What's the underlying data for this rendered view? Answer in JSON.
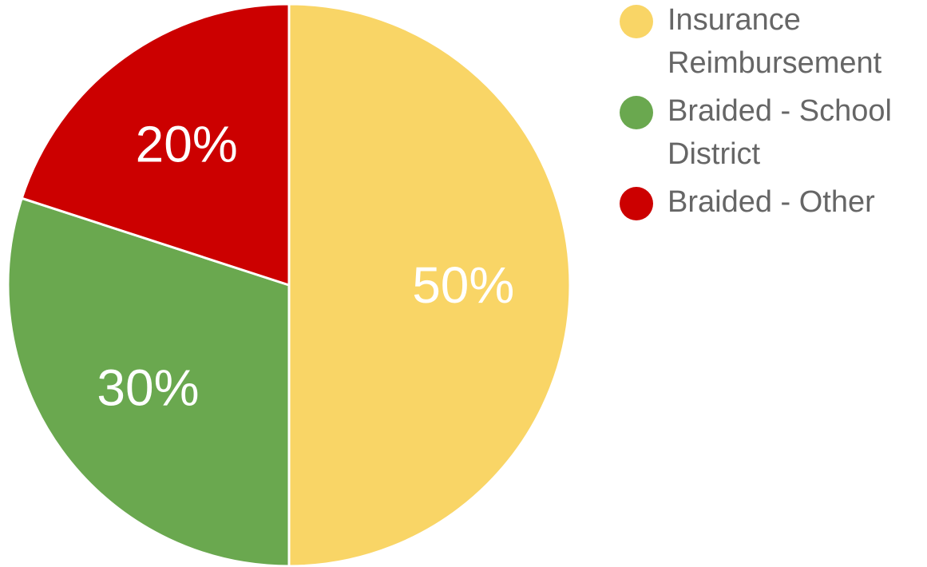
{
  "chart_data": {
    "type": "pie",
    "categories": [
      "Insurance Reimbursement",
      "Braided - School District",
      "Braided - Other"
    ],
    "values": [
      50,
      30,
      20
    ],
    "value_labels": [
      "50%",
      "30%",
      "20%"
    ],
    "colors": [
      "#F9D566",
      "#6AA84F",
      "#CC0000"
    ],
    "legend_position": "right",
    "start_angle": "12 o'clock",
    "direction": "clockwise"
  },
  "legend": {
    "items": [
      {
        "label": "Insurance Reimbursement",
        "color": "#F9D566"
      },
      {
        "label": "Braided - School District",
        "color": "#6AA84F"
      },
      {
        "label": "Braided - Other",
        "color": "#CC0000"
      }
    ]
  }
}
